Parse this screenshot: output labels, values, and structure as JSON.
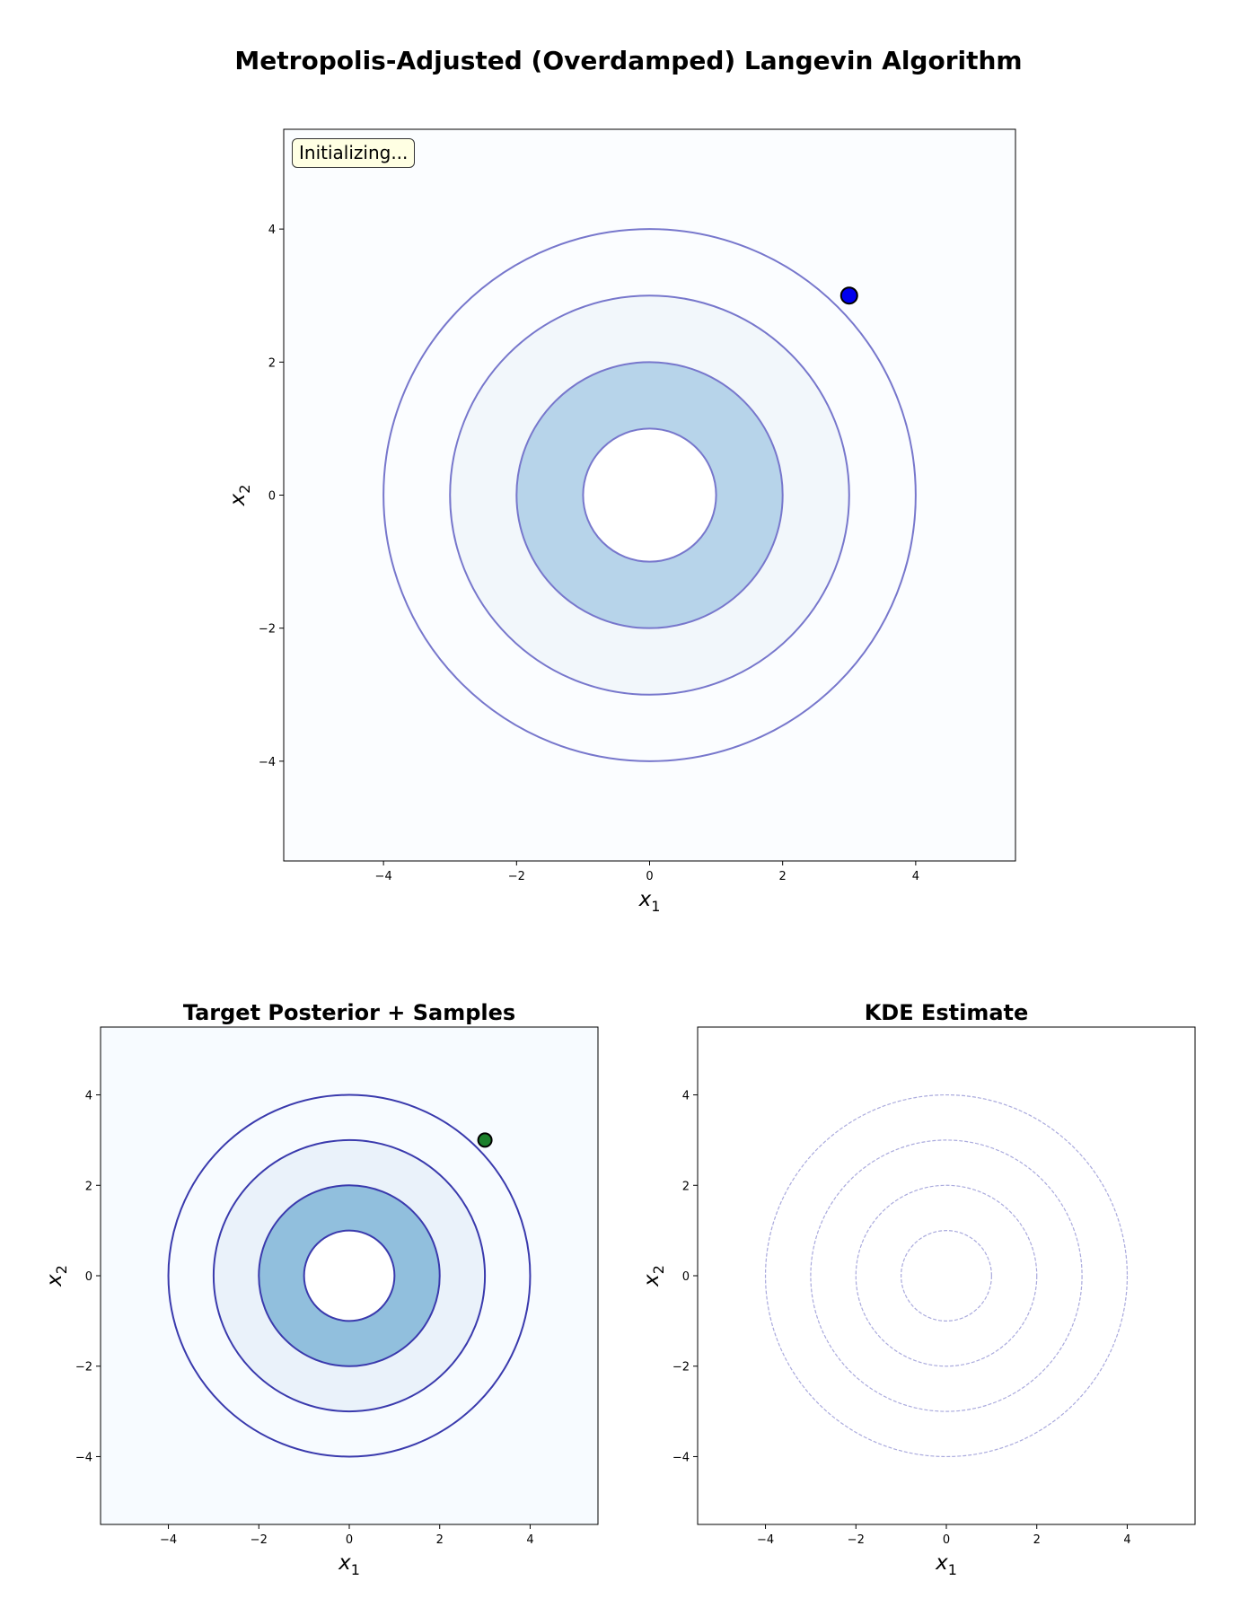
{
  "figure": {
    "title": "Metropolis-Adjusted (Overdamped) Langevin Algorithm",
    "status_text": "Initializing..."
  },
  "chart_data": [
    {
      "type": "contour",
      "title": "",
      "xlabel": "x1",
      "ylabel": "x2",
      "xlim": [
        -5.5,
        5.5
      ],
      "ylim": [
        -5.5,
        5.5
      ],
      "xticks": [
        -4,
        -2,
        0,
        2,
        4
      ],
      "yticks": [
        -4,
        -2,
        0,
        2,
        4
      ],
      "tick_labels": [
        "−4",
        "−2",
        "0",
        "2",
        "4"
      ],
      "contour_radii": [
        1,
        2,
        3,
        4
      ],
      "filled": true,
      "background_color": "#fbfdff",
      "fill_colors": {
        "r4": "#fbfdff",
        "r3": "#f2f7fb",
        "r2": "#b7d4ea",
        "r1": "#ffffff"
      },
      "line_color": "#7777cc",
      "line_style": "solid",
      "points": [
        {
          "x": 3,
          "y": 3,
          "color": "#0000ee"
        }
      ]
    },
    {
      "type": "contour",
      "title": "Target Posterior + Samples",
      "xlabel": "x1",
      "ylabel": "x2",
      "xlim": [
        -5.5,
        5.5
      ],
      "ylim": [
        -5.5,
        5.5
      ],
      "xticks": [
        -4,
        -2,
        0,
        2,
        4
      ],
      "yticks": [
        -4,
        -2,
        0,
        2,
        4
      ],
      "tick_labels": [
        "−4",
        "−2",
        "0",
        "2",
        "4"
      ],
      "contour_radii": [
        1,
        2,
        3,
        4
      ],
      "filled": true,
      "background_color": "#f7fbff",
      "fill_colors": {
        "r4": "#f7fbff",
        "r3": "#eaf2fa",
        "r2": "#91bfdd",
        "r1": "#ffffff"
      },
      "line_color": "#3a3aad",
      "line_style": "solid",
      "points": [
        {
          "x": 3,
          "y": 3,
          "color": "#1a7f2a"
        }
      ]
    },
    {
      "type": "contour",
      "title": "KDE Estimate",
      "xlabel": "x1",
      "ylabel": "x2",
      "xlim": [
        -5.5,
        5.5
      ],
      "ylim": [
        -5.5,
        5.5
      ],
      "xticks": [
        -4,
        -2,
        0,
        2,
        4
      ],
      "yticks": [
        -4,
        -2,
        0,
        2,
        4
      ],
      "tick_labels": [
        "−4",
        "−2",
        "0",
        "2",
        "4"
      ],
      "contour_radii": [
        1,
        2,
        3,
        4
      ],
      "filled": false,
      "background_color": "#ffffff",
      "line_color": "#aaaadd",
      "line_style": "dashed",
      "points": []
    }
  ]
}
